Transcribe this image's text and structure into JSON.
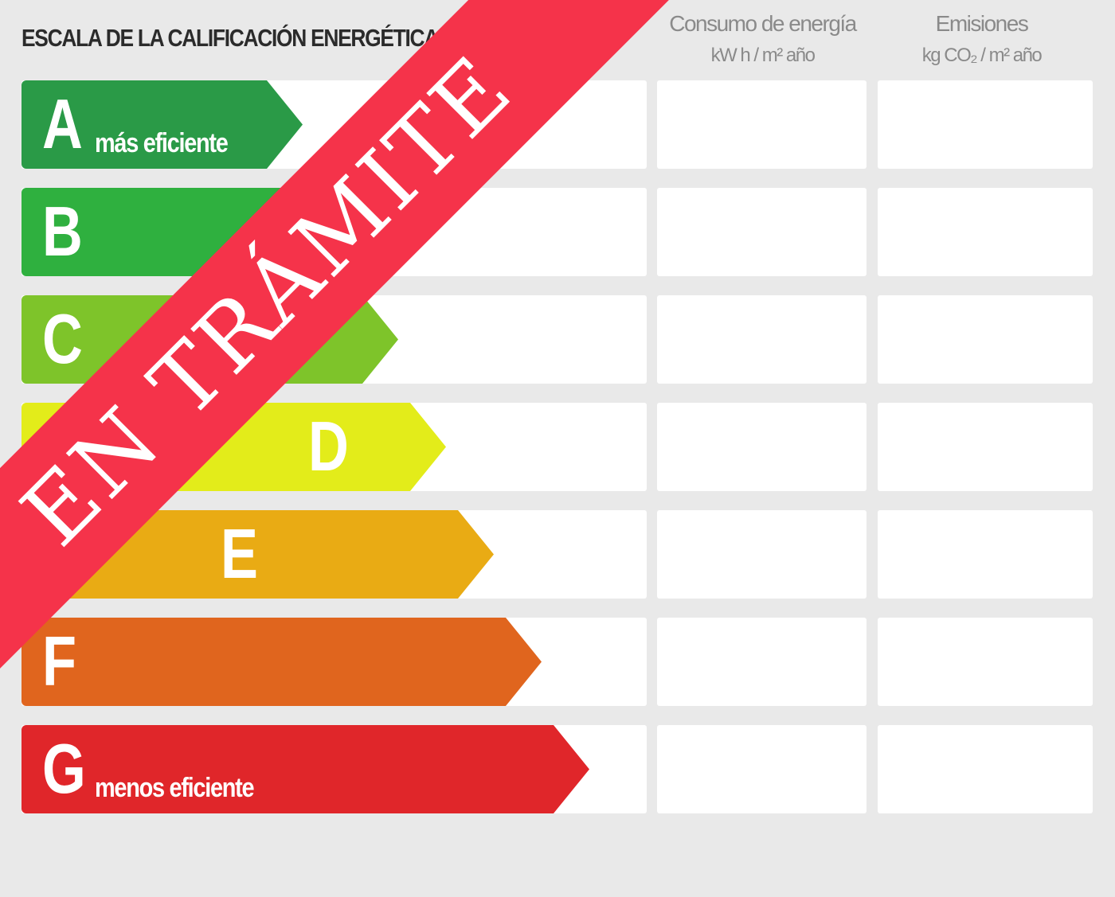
{
  "title": "ESCALA DE LA CALIFICACIÓN ENERGÉTICA",
  "columns": [
    {
      "label": "Consumo de energía",
      "unit": "kW h / m² año"
    },
    {
      "label": "Emisiones",
      "unit": "kg CO₂ / m² año"
    }
  ],
  "ratings": [
    {
      "letter": "A",
      "desc": "más eficiente",
      "color": "#2a9a47"
    },
    {
      "letter": "B",
      "desc": "",
      "color": "#2fb03f"
    },
    {
      "letter": "C",
      "desc": "",
      "color": "#7ec42a"
    },
    {
      "letter": "D",
      "desc": "",
      "color": "#e3ec1a"
    },
    {
      "letter": "E",
      "desc": "",
      "color": "#e9ab14"
    },
    {
      "letter": "F",
      "desc": "",
      "color": "#e0651e"
    },
    {
      "letter": "G",
      "desc": "menos eficiente",
      "color": "#e0262a"
    }
  ],
  "ribbon": {
    "text": "EN TRÁMITE",
    "color": "#f5334a"
  }
}
